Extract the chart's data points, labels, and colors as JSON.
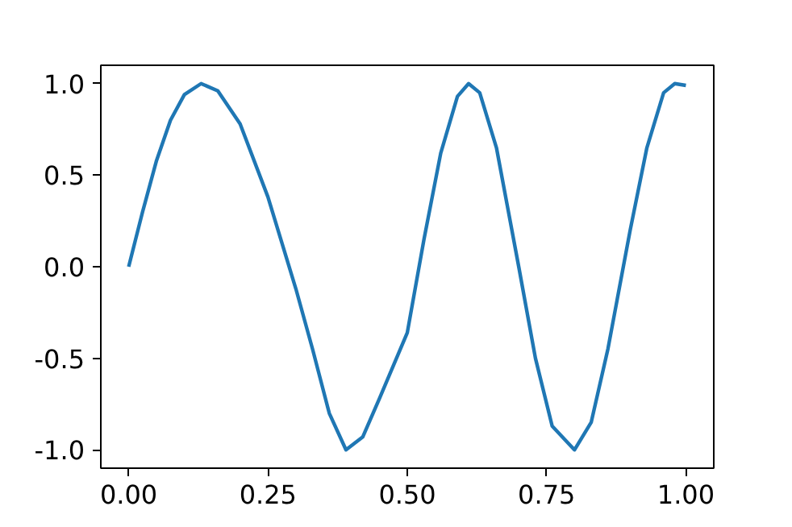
{
  "chart_data": {
    "type": "line",
    "x": [
      0,
      0.025,
      0.05,
      0.075,
      0.1,
      0.13,
      0.16,
      0.2,
      0.25,
      0.3,
      0.33,
      0.36,
      0.39,
      0.42,
      0.45,
      0.5,
      0.53,
      0.56,
      0.59,
      0.61,
      0.63,
      0.66,
      0.7,
      0.73,
      0.76,
      0.8,
      0.83,
      0.86,
      0.9,
      0.93,
      0.96,
      0.98,
      1.0
    ],
    "series": [
      {
        "color": "#1f77b4",
        "values": [
          0,
          0.3,
          0.58,
          0.8,
          0.94,
          1.0,
          0.96,
          0.78,
          0.38,
          -0.12,
          -0.45,
          -0.8,
          -1.0,
          -0.93,
          -0.72,
          -0.36,
          0.15,
          0.62,
          0.93,
          1.0,
          0.95,
          0.65,
          0.0,
          -0.5,
          -0.87,
          -1.0,
          -0.85,
          -0.45,
          0.2,
          0.65,
          0.95,
          1.0,
          0.99
        ]
      }
    ],
    "xlim": [
      -0.05,
      1.05
    ],
    "ylim": [
      -1.1,
      1.1
    ],
    "xticks": [
      {
        "value": 0,
        "label": "0.00"
      },
      {
        "value": 0.25,
        "label": "0.25"
      },
      {
        "value": 0.5,
        "label": "0.50"
      },
      {
        "value": 0.75,
        "label": "0.75"
      },
      {
        "value": 1,
        "label": "1.00"
      }
    ],
    "yticks": [
      {
        "value": -1,
        "label": "-1.0"
      },
      {
        "value": -0.5,
        "label": "-0.5"
      },
      {
        "value": 0,
        "label": "0.0"
      },
      {
        "value": 0.5,
        "label": "0.5"
      },
      {
        "value": 1,
        "label": "1.0"
      }
    ],
    "grid": false,
    "marker": "none",
    "line_style": "solid"
  }
}
